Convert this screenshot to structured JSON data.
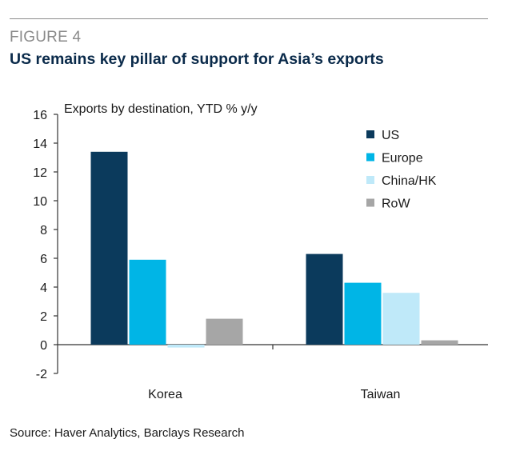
{
  "figure_label": "FIGURE 4",
  "title": "US remains key pillar of support for Asia’s exports",
  "source": "Source: Haver Analytics, Barclays Research",
  "chart_data": {
    "type": "bar",
    "subtitle": "Exports by destination,  YTD % y/y",
    "categories": [
      "Korea",
      "Taiwan"
    ],
    "series": [
      {
        "name": "US",
        "values": [
          13.4,
          6.3
        ],
        "color": "#0b3a5c"
      },
      {
        "name": "Europe",
        "values": [
          5.9,
          4.3
        ],
        "color": "#00b5e6"
      },
      {
        "name": "China/HK",
        "values": [
          -0.2,
          3.6
        ],
        "color": "#bfe9f9"
      },
      {
        "name": "RoW",
        "values": [
          1.8,
          0.3
        ],
        "color": "#a6a6a6"
      }
    ],
    "ylim": [
      -2,
      16
    ],
    "yticks": [
      -2,
      0,
      2,
      4,
      6,
      8,
      10,
      12,
      14,
      16
    ],
    "legend_position": "top-right",
    "grid": false
  }
}
